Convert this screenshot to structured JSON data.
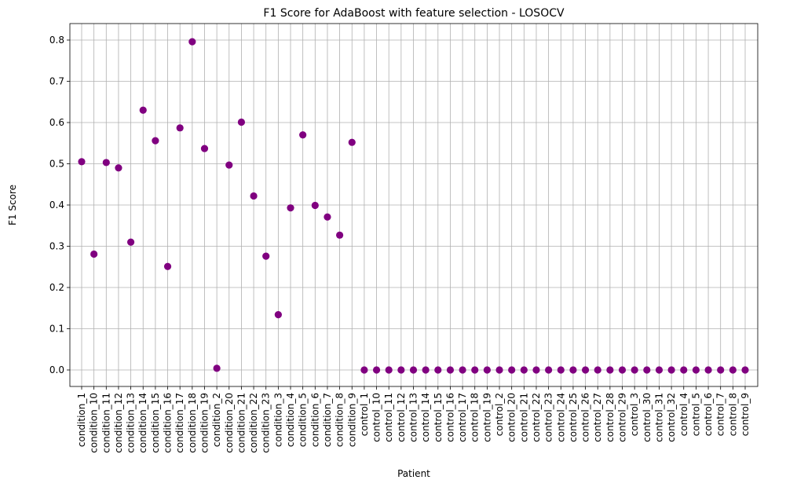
{
  "chart_data": {
    "type": "scatter",
    "title": "F1 Score for AdaBoost with feature selection - LOSOCV",
    "xlabel": "Patient",
    "ylabel": "F1 Score",
    "ylim": [
      -0.04,
      0.84
    ],
    "yticks": [
      0.0,
      0.1,
      0.2,
      0.3,
      0.4,
      0.5,
      0.6,
      0.7,
      0.8
    ],
    "grid": true,
    "marker_color": "#800080",
    "categories": [
      "condition_1",
      "condition_10",
      "condition_11",
      "condition_12",
      "condition_13",
      "condition_14",
      "condition_15",
      "condition_16",
      "condition_17",
      "condition_18",
      "condition_19",
      "condition_2",
      "condition_20",
      "condition_21",
      "condition_22",
      "condition_23",
      "condition_3",
      "condition_4",
      "condition_5",
      "condition_6",
      "condition_7",
      "condition_8",
      "condition_9",
      "control_1",
      "control_10",
      "control_11",
      "control_12",
      "control_13",
      "control_14",
      "control_15",
      "control_16",
      "control_17",
      "control_18",
      "control_19",
      "control_2",
      "control_20",
      "control_21",
      "control_22",
      "control_23",
      "control_24",
      "control_25",
      "control_26",
      "control_27",
      "control_28",
      "control_29",
      "control_3",
      "control_30",
      "control_31",
      "control_32",
      "control_4",
      "control_5",
      "control_6",
      "control_7",
      "control_8",
      "control_9"
    ],
    "values": [
      0.505,
      0.281,
      0.503,
      0.49,
      0.31,
      0.63,
      0.556,
      0.251,
      0.587,
      0.796,
      0.537,
      0.004,
      0.497,
      0.601,
      0.422,
      0.276,
      0.134,
      0.393,
      0.57,
      0.399,
      0.371,
      0.327,
      0.552,
      0.0,
      0.0,
      0.0,
      0.0,
      0.0,
      0.0,
      0.0,
      0.0,
      0.0,
      0.0,
      0.0,
      0.0,
      0.0,
      0.0,
      0.0,
      0.0,
      0.0,
      0.0,
      0.0,
      0.0,
      0.0,
      0.0,
      0.0,
      0.0,
      0.0,
      0.0,
      0.0,
      0.0,
      0.0,
      0.0,
      0.0,
      0.0
    ]
  }
}
